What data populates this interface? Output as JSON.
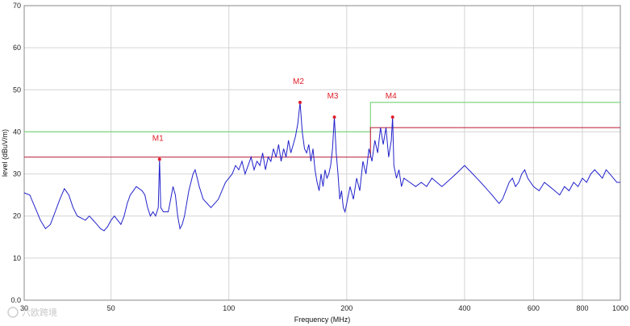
{
  "chart_data": {
    "type": "line",
    "xlabel": "Frequency (MHz)",
    "ylabel": "level (dBuV/m)",
    "x_scale": "log",
    "xlim": [
      30,
      1000
    ],
    "ylim": [
      0,
      70
    ],
    "grid": true,
    "x_ticks": [
      30,
      50,
      100,
      200,
      400,
      600,
      800,
      1000
    ],
    "y_ticks": [
      "0.0",
      "10",
      "20",
      "30",
      "40",
      "50",
      "60",
      "70"
    ],
    "colors": {
      "trace": "#2222cc",
      "limit_green": "#7fd67f",
      "limit_red": "#c0304a",
      "marker": "#e0202a",
      "grid": "#d4d4d4"
    },
    "limit_lines": [
      {
        "color": "green",
        "points": [
          [
            30,
            40
          ],
          [
            230,
            40
          ],
          [
            230,
            47
          ],
          [
            1000,
            47
          ]
        ]
      },
      {
        "color": "red",
        "points": [
          [
            30,
            34
          ],
          [
            230,
            34
          ],
          [
            230,
            41
          ],
          [
            1000,
            41
          ]
        ]
      }
    ],
    "markers": [
      {
        "label": "M1",
        "x": 66.5,
        "y": 33.5
      },
      {
        "label": "M2",
        "x": 152,
        "y": 47
      },
      {
        "label": "M3",
        "x": 186,
        "y": 43.5
      },
      {
        "label": "M4",
        "x": 262,
        "y": 43.5
      }
    ],
    "series_points": [
      [
        30,
        25.5
      ],
      [
        31,
        25
      ],
      [
        32,
        22
      ],
      [
        33,
        19
      ],
      [
        34,
        17
      ],
      [
        35,
        18
      ],
      [
        36,
        21
      ],
      [
        37,
        24
      ],
      [
        38,
        26.5
      ],
      [
        39,
        25
      ],
      [
        40,
        22
      ],
      [
        41,
        20
      ],
      [
        42,
        19.5
      ],
      [
        43,
        19
      ],
      [
        44,
        20
      ],
      [
        45,
        19
      ],
      [
        46,
        18
      ],
      [
        47,
        17
      ],
      [
        48,
        16.5
      ],
      [
        49,
        17.5
      ],
      [
        50,
        19
      ],
      [
        51,
        20
      ],
      [
        52,
        19
      ],
      [
        53,
        18
      ],
      [
        54,
        20
      ],
      [
        55,
        23
      ],
      [
        56,
        25
      ],
      [
        57,
        26
      ],
      [
        58,
        27
      ],
      [
        59,
        26.5
      ],
      [
        60,
        26
      ],
      [
        61,
        25
      ],
      [
        62,
        22
      ],
      [
        63,
        20
      ],
      [
        64,
        21
      ],
      [
        65,
        20
      ],
      [
        66,
        22
      ],
      [
        66.5,
        33.5
      ],
      [
        67,
        22
      ],
      [
        68,
        21
      ],
      [
        70,
        21
      ],
      [
        71,
        24
      ],
      [
        72,
        27
      ],
      [
        73,
        25
      ],
      [
        74,
        20
      ],
      [
        75,
        17
      ],
      [
        76,
        18
      ],
      [
        77,
        20
      ],
      [
        78,
        23
      ],
      [
        79,
        26
      ],
      [
        80,
        28
      ],
      [
        81,
        30
      ],
      [
        82,
        31
      ],
      [
        83,
        29
      ],
      [
        84,
        27
      ],
      [
        86,
        24
      ],
      [
        88,
        23
      ],
      [
        90,
        22
      ],
      [
        92,
        23
      ],
      [
        94,
        24
      ],
      [
        96,
        26
      ],
      [
        98,
        28
      ],
      [
        100,
        29
      ],
      [
        102,
        30
      ],
      [
        104,
        32
      ],
      [
        106,
        31
      ],
      [
        108,
        33
      ],
      [
        110,
        30
      ],
      [
        112,
        32
      ],
      [
        114,
        34
      ],
      [
        116,
        31
      ],
      [
        118,
        33
      ],
      [
        120,
        32
      ],
      [
        122,
        35
      ],
      [
        124,
        31
      ],
      [
        126,
        34
      ],
      [
        128,
        33
      ],
      [
        130,
        36
      ],
      [
        132,
        34
      ],
      [
        134,
        37
      ],
      [
        136,
        33
      ],
      [
        138,
        36
      ],
      [
        140,
        34
      ],
      [
        142,
        38
      ],
      [
        144,
        35
      ],
      [
        146,
        37
      ],
      [
        148,
        39
      ],
      [
        150,
        42
      ],
      [
        152,
        47
      ],
      [
        154,
        40
      ],
      [
        156,
        36
      ],
      [
        158,
        35
      ],
      [
        160,
        37
      ],
      [
        162,
        33
      ],
      [
        164,
        36
      ],
      [
        166,
        31
      ],
      [
        168,
        28
      ],
      [
        170,
        26
      ],
      [
        172,
        30
      ],
      [
        174,
        27
      ],
      [
        176,
        31
      ],
      [
        178,
        29
      ],
      [
        180,
        30
      ],
      [
        182,
        32
      ],
      [
        184,
        36
      ],
      [
        186,
        43.5
      ],
      [
        188,
        35
      ],
      [
        190,
        30
      ],
      [
        192,
        24
      ],
      [
        194,
        26
      ],
      [
        196,
        22
      ],
      [
        198,
        21
      ],
      [
        200,
        23
      ],
      [
        204,
        27
      ],
      [
        208,
        24
      ],
      [
        212,
        29
      ],
      [
        216,
        26
      ],
      [
        220,
        33
      ],
      [
        224,
        30
      ],
      [
        228,
        36
      ],
      [
        232,
        33
      ],
      [
        236,
        38
      ],
      [
        240,
        35
      ],
      [
        244,
        41
      ],
      [
        248,
        37
      ],
      [
        252,
        41
      ],
      [
        256,
        34
      ],
      [
        260,
        38
      ],
      [
        262,
        43.5
      ],
      [
        264,
        32
      ],
      [
        268,
        29
      ],
      [
        272,
        31
      ],
      [
        276,
        27
      ],
      [
        280,
        29
      ],
      [
        290,
        28
      ],
      [
        300,
        27
      ],
      [
        310,
        28
      ],
      [
        320,
        27
      ],
      [
        330,
        29
      ],
      [
        340,
        28
      ],
      [
        350,
        27
      ],
      [
        360,
        28
      ],
      [
        370,
        29
      ],
      [
        380,
        30
      ],
      [
        390,
        31
      ],
      [
        400,
        32
      ],
      [
        410,
        31
      ],
      [
        420,
        30
      ],
      [
        430,
        29
      ],
      [
        440,
        28
      ],
      [
        450,
        27
      ],
      [
        460,
        26
      ],
      [
        470,
        25
      ],
      [
        480,
        24
      ],
      [
        490,
        23
      ],
      [
        500,
        24
      ],
      [
        510,
        26
      ],
      [
        520,
        28
      ],
      [
        530,
        29
      ],
      [
        540,
        27
      ],
      [
        550,
        28
      ],
      [
        560,
        30
      ],
      [
        570,
        31
      ],
      [
        580,
        29
      ],
      [
        590,
        28
      ],
      [
        600,
        27
      ],
      [
        620,
        26
      ],
      [
        640,
        28
      ],
      [
        660,
        27
      ],
      [
        680,
        26
      ],
      [
        700,
        25
      ],
      [
        720,
        27
      ],
      [
        740,
        26
      ],
      [
        760,
        28
      ],
      [
        780,
        27
      ],
      [
        800,
        29
      ],
      [
        820,
        28
      ],
      [
        840,
        30
      ],
      [
        860,
        31
      ],
      [
        880,
        30
      ],
      [
        900,
        29
      ],
      [
        920,
        31
      ],
      [
        940,
        30
      ],
      [
        960,
        29
      ],
      [
        980,
        28
      ],
      [
        1000,
        28
      ]
    ]
  },
  "watermark": {
    "text": "六欧跨境"
  }
}
